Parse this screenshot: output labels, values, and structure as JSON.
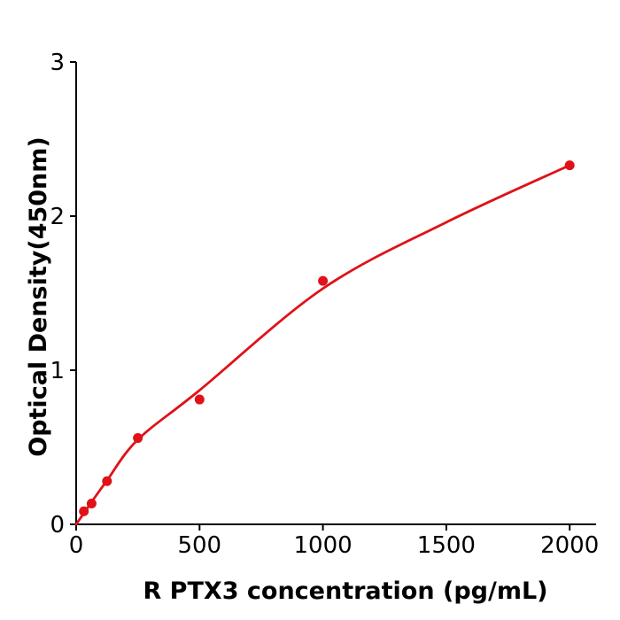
{
  "chart_data": {
    "type": "scatter",
    "title": "",
    "xlabel": "R  PTX3 concentration (pg/mL)",
    "ylabel": "Optical Density(450nm)",
    "xlim": [
      0,
      2107
    ],
    "ylim": [
      0,
      3
    ],
    "xticks": [
      0,
      500,
      1000,
      1500,
      2000
    ],
    "yticks": [
      0,
      1,
      2,
      3
    ],
    "grid": false,
    "legend": "none",
    "colors": {
      "series": "#e01118",
      "axis": "#000000",
      "background": "#ffffff"
    },
    "series": [
      {
        "name": "standard-points",
        "kind": "scatter",
        "color": "#e01118",
        "points": [
          [
            31.25,
            0.085
          ],
          [
            62.5,
            0.135
          ],
          [
            125,
            0.28
          ],
          [
            250,
            0.56
          ],
          [
            500,
            0.81
          ],
          [
            1000,
            1.58
          ],
          [
            2000,
            2.33
          ]
        ]
      },
      {
        "name": "fit-curve",
        "kind": "line",
        "color": "#e01118",
        "points": [
          [
            0,
            0.0
          ],
          [
            62.5,
            0.145
          ],
          [
            125,
            0.285
          ],
          [
            250,
            0.55
          ],
          [
            500,
            0.87
          ],
          [
            1000,
            1.53
          ],
          [
            1500,
            1.96
          ],
          [
            2000,
            2.33
          ]
        ]
      }
    ]
  }
}
